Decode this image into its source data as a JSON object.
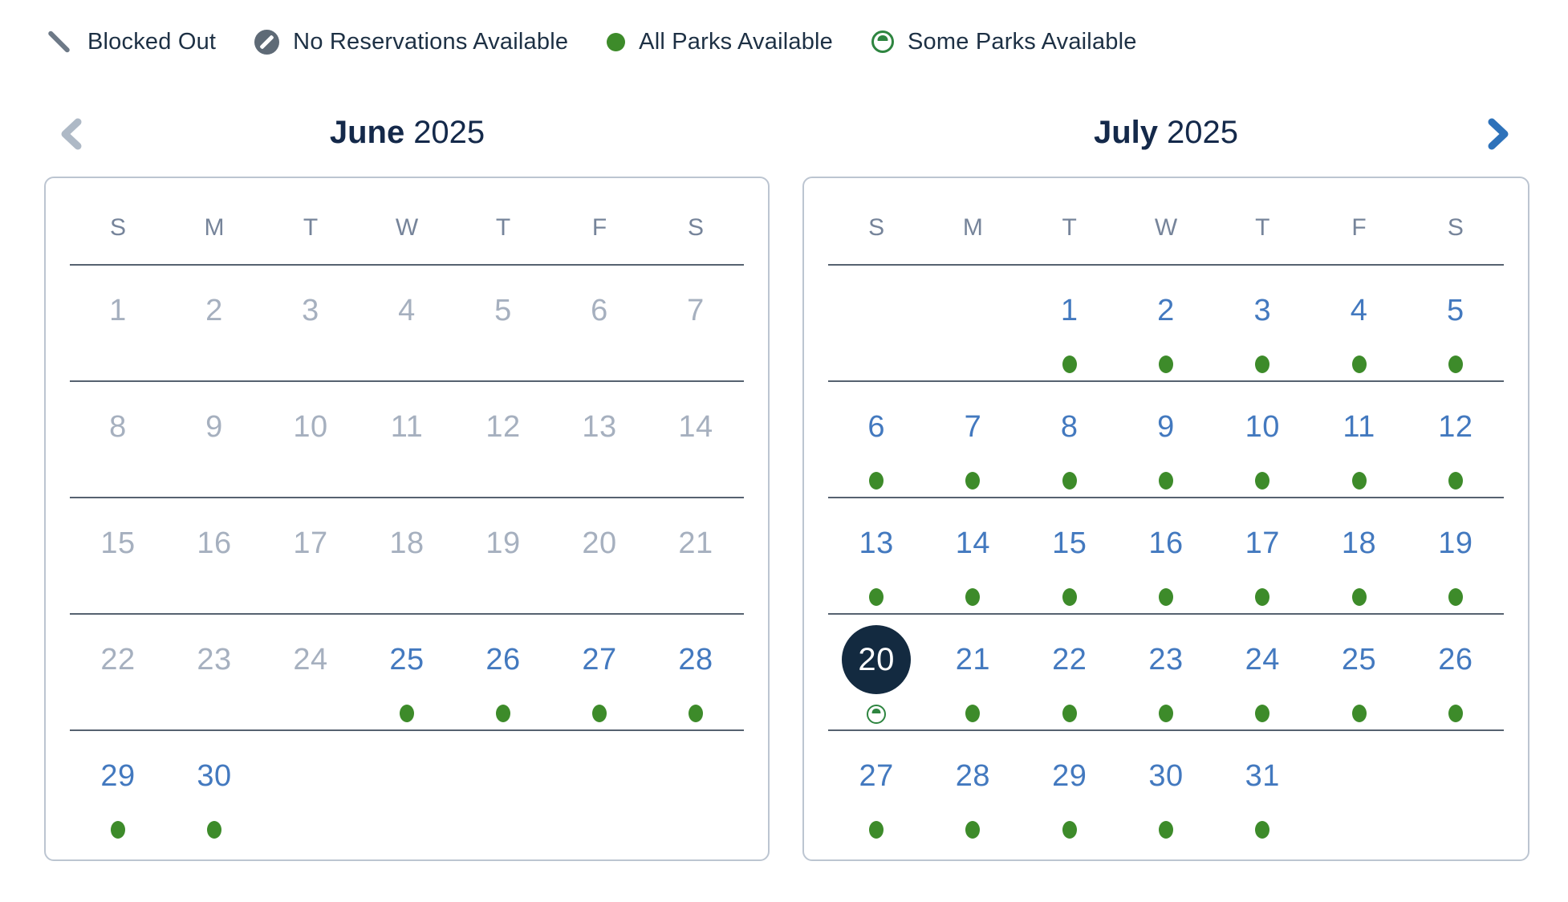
{
  "legend": {
    "items": [
      {
        "icon": "blocked-out-icon",
        "label": "Blocked Out"
      },
      {
        "icon": "no-reservations-icon",
        "label": "No Reservations Available"
      },
      {
        "icon": "all-parks-icon",
        "label": "All Parks Available"
      },
      {
        "icon": "some-parks-icon",
        "label": "Some Parks Available"
      }
    ]
  },
  "calendar": {
    "day_headers": [
      "S",
      "M",
      "T",
      "W",
      "T",
      "F",
      "S"
    ],
    "selected": {
      "month": "July",
      "year": "2025",
      "day": "20"
    },
    "months": [
      {
        "name": "June",
        "year": "2025",
        "weeks": [
          [
            {
              "day": "1",
              "state": "past"
            },
            {
              "day": "2",
              "state": "past"
            },
            {
              "day": "3",
              "state": "past"
            },
            {
              "day": "4",
              "state": "past"
            },
            {
              "day": "5",
              "state": "past"
            },
            {
              "day": "6",
              "state": "past"
            },
            {
              "day": "7",
              "state": "past"
            }
          ],
          [
            {
              "day": "8",
              "state": "past"
            },
            {
              "day": "9",
              "state": "past"
            },
            {
              "day": "10",
              "state": "past"
            },
            {
              "day": "11",
              "state": "past"
            },
            {
              "day": "12",
              "state": "past"
            },
            {
              "day": "13",
              "state": "past"
            },
            {
              "day": "14",
              "state": "past"
            }
          ],
          [
            {
              "day": "15",
              "state": "past"
            },
            {
              "day": "16",
              "state": "past"
            },
            {
              "day": "17",
              "state": "past"
            },
            {
              "day": "18",
              "state": "past"
            },
            {
              "day": "19",
              "state": "past"
            },
            {
              "day": "20",
              "state": "past"
            },
            {
              "day": "21",
              "state": "past"
            }
          ],
          [
            {
              "day": "22",
              "state": "past"
            },
            {
              "day": "23",
              "state": "past"
            },
            {
              "day": "24",
              "state": "past"
            },
            {
              "day": "25",
              "state": "available",
              "availability": "all"
            },
            {
              "day": "26",
              "state": "available",
              "availability": "all"
            },
            {
              "day": "27",
              "state": "available",
              "availability": "all"
            },
            {
              "day": "28",
              "state": "available",
              "availability": "all"
            }
          ],
          [
            {
              "day": "29",
              "state": "available",
              "availability": "all"
            },
            {
              "day": "30",
              "state": "available",
              "availability": "all"
            },
            {
              "state": "empty"
            },
            {
              "state": "empty"
            },
            {
              "state": "empty"
            },
            {
              "state": "empty"
            },
            {
              "state": "empty"
            }
          ]
        ]
      },
      {
        "name": "July",
        "year": "2025",
        "weeks": [
          [
            {
              "state": "empty"
            },
            {
              "state": "empty"
            },
            {
              "day": "1",
              "state": "available",
              "availability": "all"
            },
            {
              "day": "2",
              "state": "available",
              "availability": "all"
            },
            {
              "day": "3",
              "state": "available",
              "availability": "all"
            },
            {
              "day": "4",
              "state": "available",
              "availability": "all"
            },
            {
              "day": "5",
              "state": "available",
              "availability": "all"
            }
          ],
          [
            {
              "day": "6",
              "state": "available",
              "availability": "all"
            },
            {
              "day": "7",
              "state": "available",
              "availability": "all"
            },
            {
              "day": "8",
              "state": "available",
              "availability": "all"
            },
            {
              "day": "9",
              "state": "available",
              "availability": "all"
            },
            {
              "day": "10",
              "state": "available",
              "availability": "all"
            },
            {
              "day": "11",
              "state": "available",
              "availability": "all"
            },
            {
              "day": "12",
              "state": "available",
              "availability": "all"
            }
          ],
          [
            {
              "day": "13",
              "state": "available",
              "availability": "all"
            },
            {
              "day": "14",
              "state": "available",
              "availability": "all"
            },
            {
              "day": "15",
              "state": "available",
              "availability": "all"
            },
            {
              "day": "16",
              "state": "available",
              "availability": "all"
            },
            {
              "day": "17",
              "state": "available",
              "availability": "all"
            },
            {
              "day": "18",
              "state": "available",
              "availability": "all"
            },
            {
              "day": "19",
              "state": "available",
              "availability": "all"
            }
          ],
          [
            {
              "day": "20",
              "state": "selected",
              "availability": "some"
            },
            {
              "day": "21",
              "state": "available",
              "availability": "all"
            },
            {
              "day": "22",
              "state": "available",
              "availability": "all"
            },
            {
              "day": "23",
              "state": "available",
              "availability": "all"
            },
            {
              "day": "24",
              "state": "available",
              "availability": "all"
            },
            {
              "day": "25",
              "state": "available",
              "availability": "all"
            },
            {
              "day": "26",
              "state": "available",
              "availability": "all"
            }
          ],
          [
            {
              "day": "27",
              "state": "available",
              "availability": "all"
            },
            {
              "day": "28",
              "state": "available",
              "availability": "all"
            },
            {
              "day": "29",
              "state": "available",
              "availability": "all"
            },
            {
              "day": "30",
              "state": "available",
              "availability": "all"
            },
            {
              "day": "31",
              "state": "available",
              "availability": "all"
            },
            {
              "state": "empty"
            },
            {
              "state": "empty"
            }
          ]
        ]
      }
    ]
  },
  "colors": {
    "all_parks_green": "#3d8b2a",
    "some_parks_green": "#2e8540",
    "available_date_blue": "#4379bf",
    "selected_navy": "#132a40",
    "disabled_gray": "#a6b0bf",
    "header_navy": "#14294a",
    "legend_gray": "#5e6a76",
    "next_arrow_blue": "#2e72ba",
    "prev_arrow_gray": "#aeb9c6"
  }
}
